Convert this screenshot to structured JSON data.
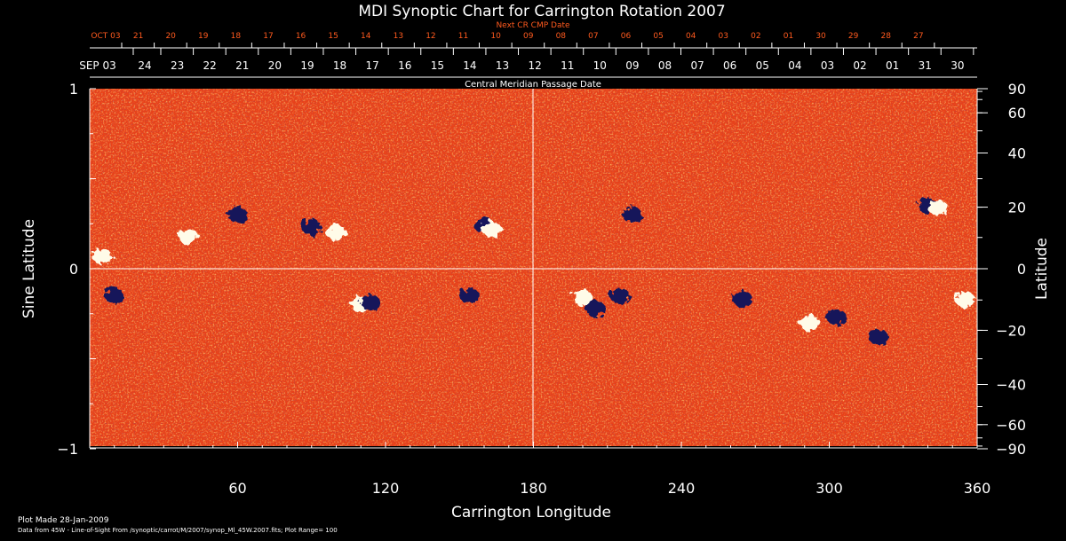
{
  "chart_data": {
    "type": "heatmap",
    "title": "MDI Synoptic Chart for Carrington Rotation 2007",
    "top_axis_title": "Next CR CMP Date",
    "top_axis_dates": [
      "OCT 03",
      "21",
      "20",
      "19",
      "18",
      "17",
      "16",
      "15",
      "14",
      "13",
      "12",
      "11",
      "10",
      "09",
      "08",
      "07",
      "06",
      "05",
      "04",
      "03",
      "02",
      "01",
      "30",
      "29",
      "28",
      "27"
    ],
    "mid_axis_dates": [
      "SEP 03",
      "24",
      "23",
      "22",
      "21",
      "20",
      "19",
      "18",
      "17",
      "16",
      "15",
      "14",
      "13",
      "12",
      "11",
      "10",
      "09",
      "08",
      "07",
      "06",
      "05",
      "04",
      "03",
      "02",
      "01",
      "31",
      "30"
    ],
    "mid_axis_title": "Central Meridian Passage Date",
    "xlabel": "Carrington Longitude",
    "xlim": [
      0,
      360
    ],
    "xticks": [
      60,
      120,
      180,
      240,
      300,
      360
    ],
    "ylabel_left": "Sine Latitude",
    "ylim_left": [
      -1,
      1
    ],
    "yticks_left": [
      "1",
      "0",
      "−1"
    ],
    "ylabel_right": "Latitude",
    "yticks_right": [
      "90",
      "60",
      "40",
      "20",
      "0",
      "−20",
      "−40",
      "−60",
      "−90"
    ],
    "yticks_right_values": [
      90,
      60,
      40,
      20,
      0,
      -20,
      -40,
      -60,
      -90
    ],
    "crosshair": {
      "longitude": 180,
      "sine_latitude": 0
    },
    "active_regions": [
      {
        "lon": 5,
        "sinlat": 0.07,
        "polarity": "positive"
      },
      {
        "lon": 10,
        "sinlat": -0.15,
        "polarity": "negative"
      },
      {
        "lon": 40,
        "sinlat": 0.18,
        "polarity": "positive"
      },
      {
        "lon": 60,
        "sinlat": 0.3,
        "polarity": "negative"
      },
      {
        "lon": 90,
        "sinlat": 0.23,
        "polarity": "negative"
      },
      {
        "lon": 100,
        "sinlat": 0.2,
        "polarity": "positive"
      },
      {
        "lon": 110,
        "sinlat": -0.2,
        "polarity": "positive"
      },
      {
        "lon": 114,
        "sinlat": -0.19,
        "polarity": "negative"
      },
      {
        "lon": 154,
        "sinlat": -0.15,
        "polarity": "negative"
      },
      {
        "lon": 160,
        "sinlat": 0.24,
        "polarity": "negative"
      },
      {
        "lon": 163,
        "sinlat": 0.22,
        "polarity": "positive"
      },
      {
        "lon": 200,
        "sinlat": -0.16,
        "polarity": "positive"
      },
      {
        "lon": 205,
        "sinlat": -0.22,
        "polarity": "negative"
      },
      {
        "lon": 215,
        "sinlat": -0.15,
        "polarity": "negative"
      },
      {
        "lon": 220,
        "sinlat": 0.3,
        "polarity": "negative"
      },
      {
        "lon": 265,
        "sinlat": -0.17,
        "polarity": "negative"
      },
      {
        "lon": 292,
        "sinlat": -0.3,
        "polarity": "positive"
      },
      {
        "lon": 303,
        "sinlat": -0.27,
        "polarity": "negative"
      },
      {
        "lon": 320,
        "sinlat": -0.38,
        "polarity": "negative"
      },
      {
        "lon": 340,
        "sinlat": 0.35,
        "polarity": "negative"
      },
      {
        "lon": 344,
        "sinlat": 0.34,
        "polarity": "positive"
      },
      {
        "lon": 355,
        "sinlat": -0.17,
        "polarity": "positive"
      }
    ],
    "colors": {
      "background": "#000000",
      "base": "#e8421a",
      "high": "#ffd060",
      "positive": "#fffbe8",
      "negative": "#12125a",
      "axis": "#ffffff",
      "dates_red": "#ff5a1e"
    }
  },
  "footer": {
    "plot_made": "Plot Made 28-Jan-2009",
    "source": "Data from 45W - Line-of-Sight From /synoptic/carrot/M/2007/synop_Ml_45W.2007.fits; Plot Range= 100"
  }
}
